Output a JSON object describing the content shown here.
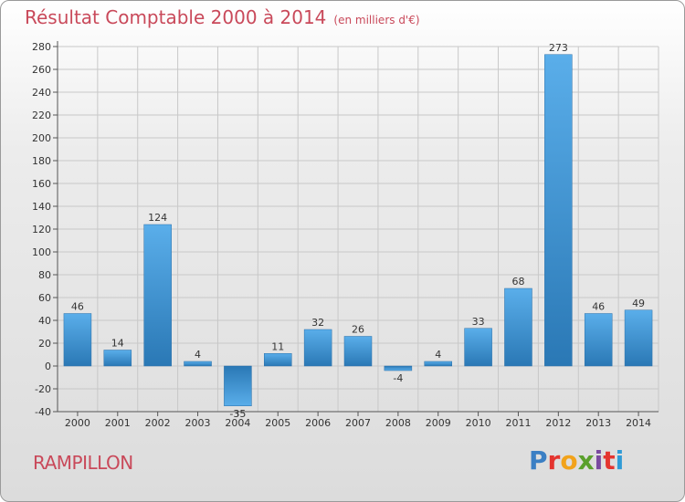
{
  "header": {
    "title": "Résultat Comptable 2000 à 2014",
    "unit": "(en milliers d'€)"
  },
  "footer": {
    "municipality": "RAMPILLON",
    "logo_text": "Proxiti"
  },
  "colors": {
    "title": "#c9495a",
    "bar_light": "#5aaeea",
    "bar_dark": "#2a78b5",
    "grid": "#c8c8c8"
  },
  "chart_data": {
    "type": "bar",
    "categories": [
      "2000",
      "2001",
      "2002",
      "2003",
      "2004",
      "2005",
      "2006",
      "2007",
      "2008",
      "2009",
      "2010",
      "2011",
      "2012",
      "2013",
      "2014"
    ],
    "values": [
      46,
      14,
      124,
      4,
      -35,
      11,
      32,
      26,
      -4,
      4,
      33,
      68,
      273,
      46,
      49
    ],
    "ylim": [
      -40,
      280
    ],
    "yticks": [
      -40,
      -20,
      0,
      20,
      40,
      60,
      80,
      100,
      120,
      140,
      160,
      180,
      200,
      220,
      240,
      260,
      280
    ],
    "grid": true,
    "data_labels": true
  }
}
